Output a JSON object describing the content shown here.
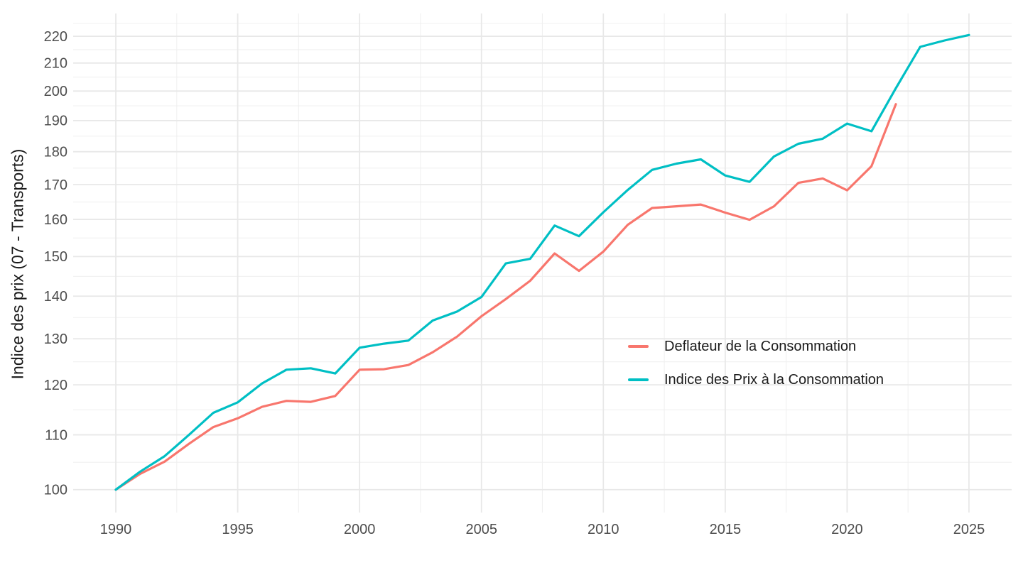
{
  "chart_data": {
    "type": "line",
    "title": "",
    "xlabel": "",
    "ylabel": "Indice des prix (07 - Transports)",
    "y_scale": "log10",
    "grid": true,
    "background_color": "#FFFFFF",
    "major_grid_color": "#E8E8E8",
    "minor_grid_color": "#F0F0F0",
    "tick_label_color": "#4D4D4D",
    "x_ticks": [
      1990,
      1995,
      2000,
      2005,
      2010,
      2015,
      2020,
      2025
    ],
    "y_ticks": [
      100,
      110,
      120,
      130,
      140,
      150,
      160,
      170,
      180,
      190,
      200,
      210,
      220
    ],
    "x_range": [
      1988.25,
      2026.75
    ],
    "y_range": [
      96.1,
      228.9
    ],
    "legend_position": "inside-right",
    "series": [
      {
        "name": "Deflateur de la Consommation",
        "color": "#F8766D",
        "years": [
          1990,
          1991,
          1992,
          1993,
          1994,
          1995,
          1996,
          1997,
          1998,
          1999,
          2000,
          2001,
          2002,
          2003,
          2004,
          2005,
          2006,
          2007,
          2008,
          2009,
          2010,
          2011,
          2012,
          2013,
          2014,
          2015,
          2016,
          2017,
          2018,
          2019,
          2020,
          2021,
          2022
        ],
        "values": [
          100,
          102.8,
          105,
          108.3,
          111.5,
          113.2,
          115.5,
          116.7,
          116.5,
          117.7,
          123.2,
          123.3,
          124.2,
          127,
          130.5,
          135.2,
          139.3,
          143.8,
          150.8,
          146.3,
          151.3,
          158.5,
          163.2,
          163.7,
          164.2,
          161.9,
          159.9,
          163.7,
          170.5,
          171.8,
          168.3,
          175.5,
          195.5
        ]
      },
      {
        "name": "Indice des Prix à la Consommation",
        "color": "#00BFC4",
        "years": [
          1990,
          1991,
          1992,
          1993,
          1994,
          1995,
          1996,
          1997,
          1998,
          1999,
          2000,
          2001,
          2002,
          2003,
          2004,
          2005,
          2006,
          2007,
          2008,
          2009,
          2010,
          2011,
          2012,
          2013,
          2014,
          2015,
          2016,
          2017,
          2018,
          2019,
          2020,
          2021,
          2022,
          2023,
          2024,
          2025
        ],
        "values": [
          100,
          103.2,
          106,
          110,
          114.3,
          116.4,
          120.3,
          123.2,
          123.5,
          122.4,
          128,
          128.9,
          129.6,
          134.2,
          136.3,
          139.8,
          148.2,
          149.4,
          158.3,
          155.4,
          162,
          168.4,
          174.4,
          176.3,
          177.6,
          172.7,
          170.8,
          178.5,
          182.5,
          184.1,
          189,
          186.5,
          201,
          216,
          218.4,
          220.5
        ]
      }
    ]
  }
}
